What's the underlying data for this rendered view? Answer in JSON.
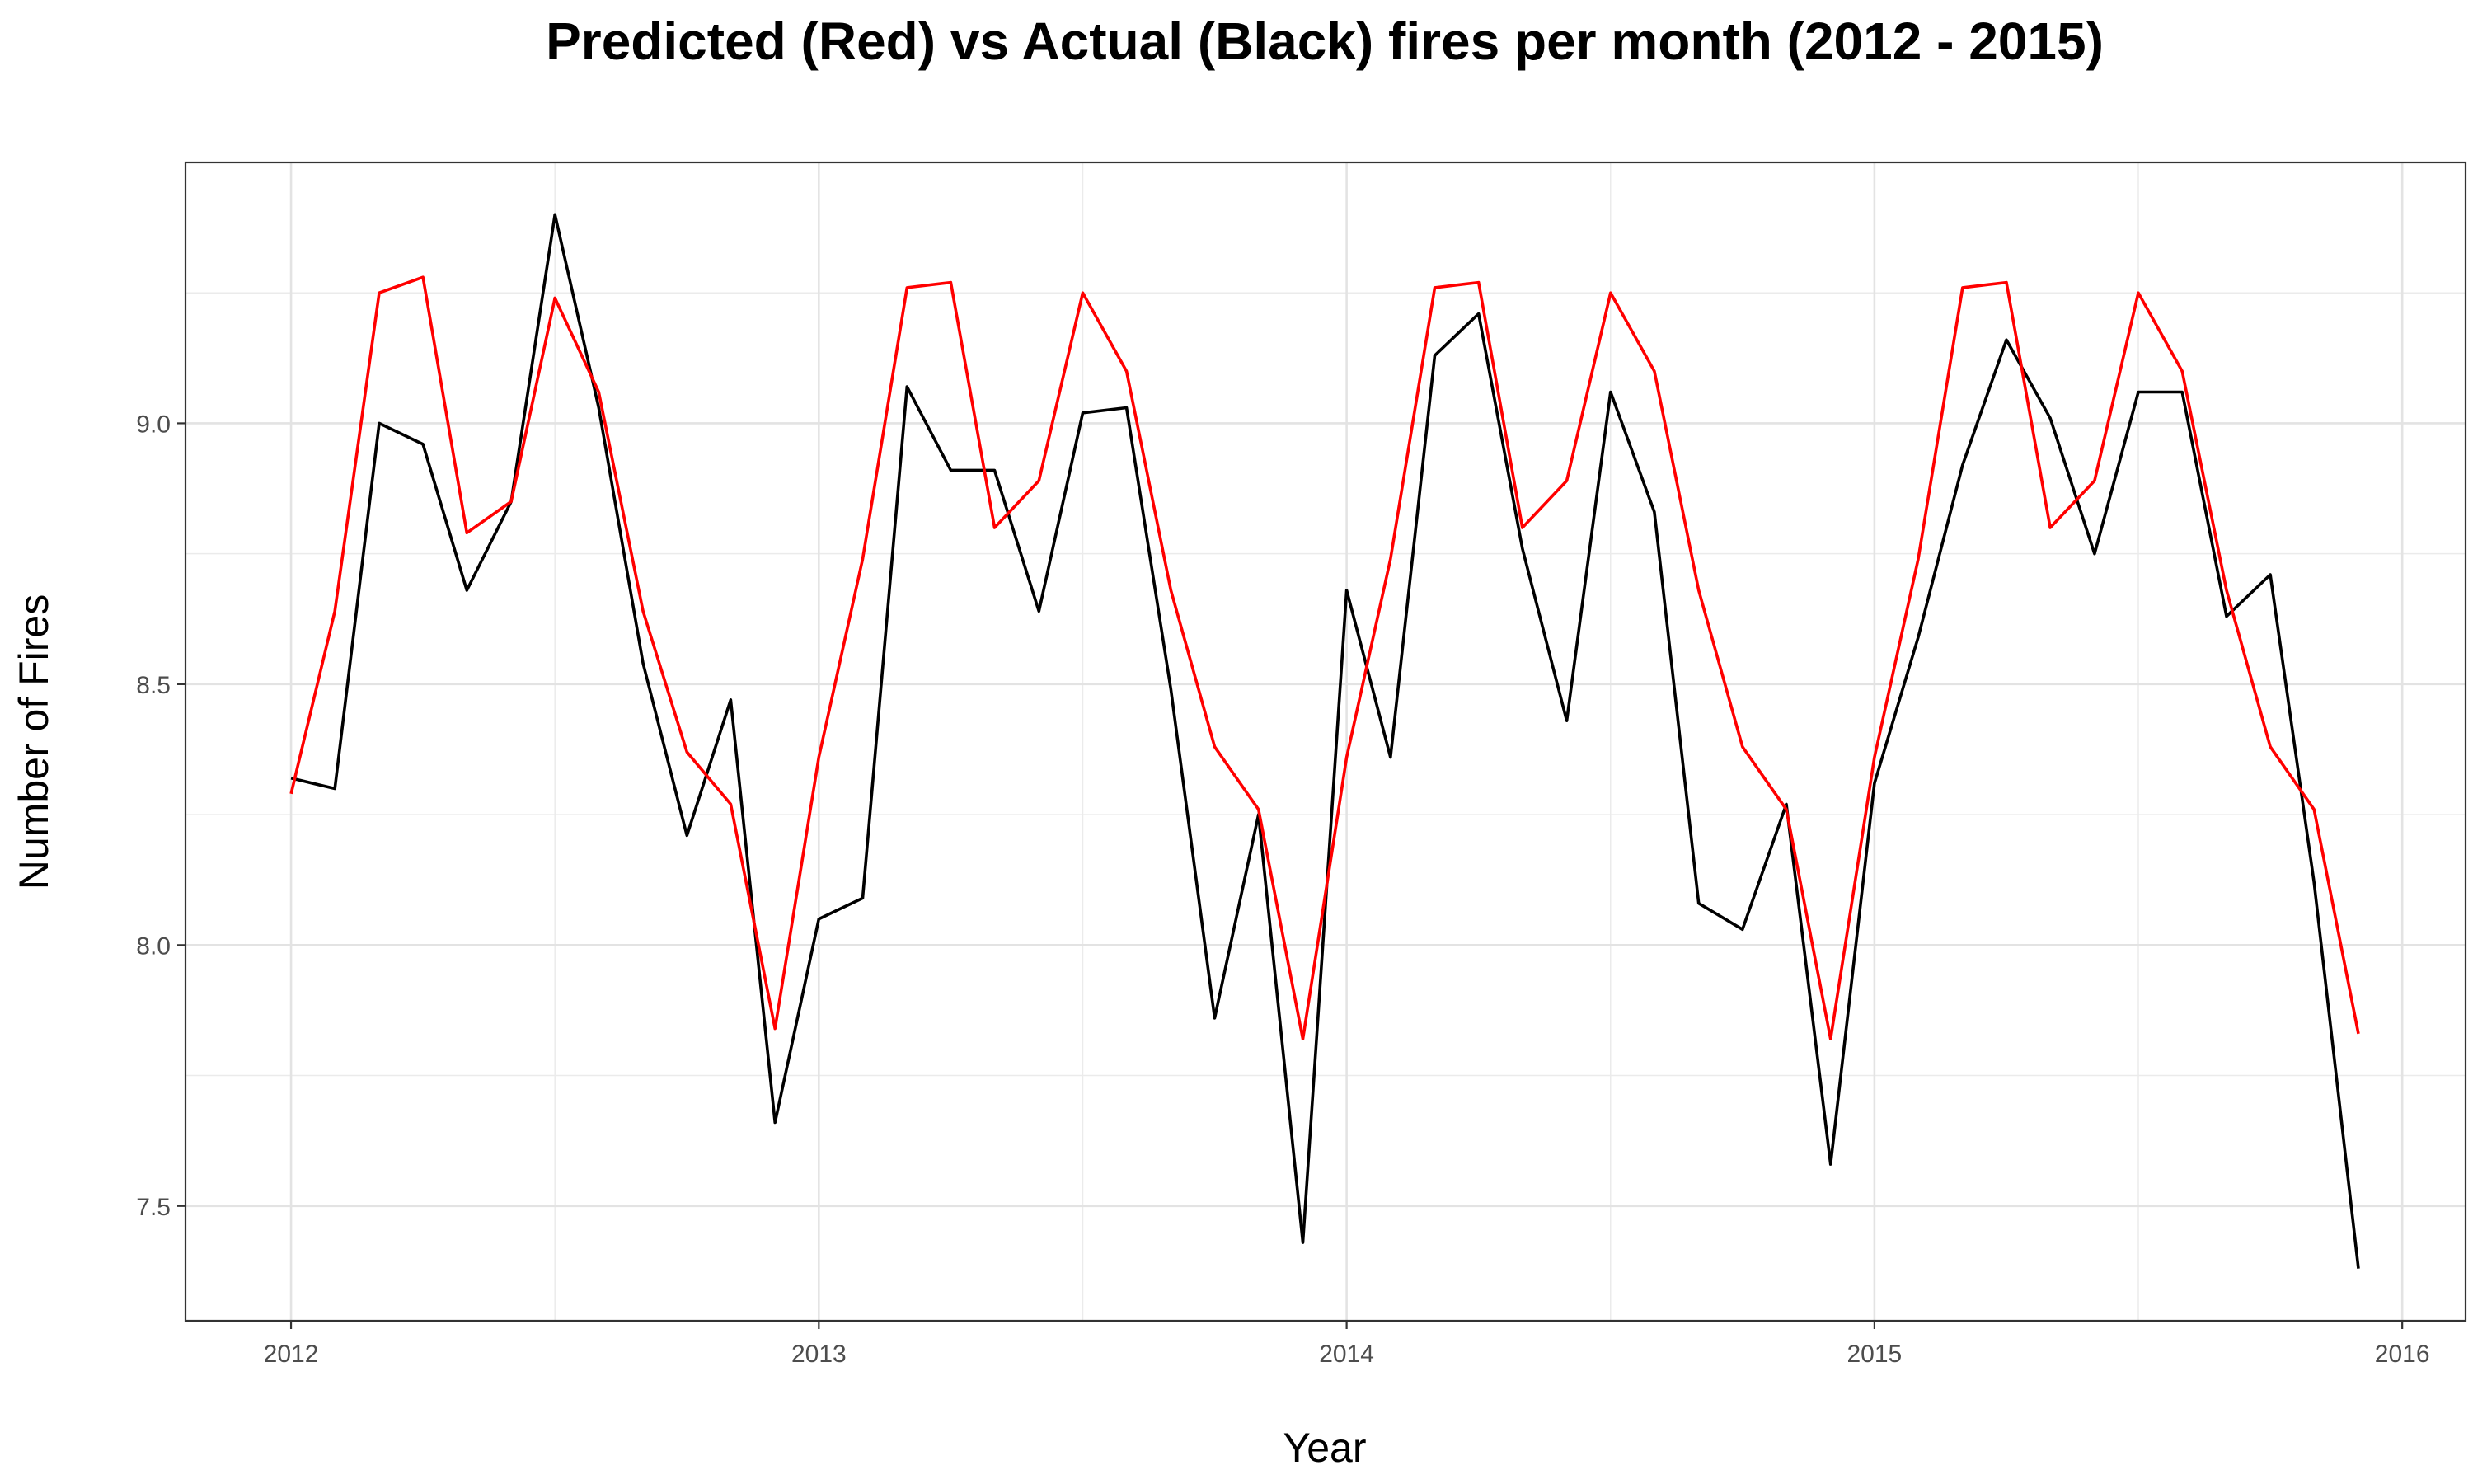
{
  "chart_data": {
    "type": "line",
    "title": "Predicted (Red) vs Actual (Black) fires per month (2012 - 2015)",
    "xlabel": "Year",
    "ylabel": "Number of Fires",
    "xlim": [
      2011.8,
      2016.12
    ],
    "ylim": [
      7.28,
      9.5
    ],
    "x_ticks": [
      2012,
      2013,
      2014,
      2015,
      2016
    ],
    "x_tick_labels": [
      "2012",
      "2013",
      "2014",
      "2015",
      "2016"
    ],
    "y_ticks": [
      7.5,
      8.0,
      8.5,
      9.0
    ],
    "y_tick_labels": [
      "7.5",
      "8.0",
      "8.5",
      "9.0"
    ],
    "grid": true,
    "x": [
      2012.0,
      2012.083,
      2012.167,
      2012.25,
      2012.333,
      2012.417,
      2012.5,
      2012.583,
      2012.667,
      2012.75,
      2012.833,
      2012.917,
      2013.0,
      2013.083,
      2013.167,
      2013.25,
      2013.333,
      2013.417,
      2013.5,
      2013.583,
      2013.667,
      2013.75,
      2013.833,
      2013.917,
      2014.0,
      2014.083,
      2014.167,
      2014.25,
      2014.333,
      2014.417,
      2014.5,
      2014.583,
      2014.667,
      2014.75,
      2014.833,
      2014.917,
      2015.0,
      2015.083,
      2015.167,
      2015.25,
      2015.333,
      2015.417,
      2015.5,
      2015.583,
      2015.667,
      2015.75,
      2015.833,
      2015.917
    ],
    "series": [
      {
        "name": "Actual",
        "color": "#000000",
        "values": [
          8.32,
          8.3,
          9.0,
          8.96,
          8.68,
          8.85,
          9.4,
          9.03,
          8.54,
          8.21,
          8.47,
          7.66,
          8.05,
          8.09,
          9.07,
          8.91,
          8.91,
          8.64,
          9.02,
          9.03,
          8.49,
          7.86,
          8.25,
          7.43,
          8.68,
          8.36,
          9.13,
          9.21,
          8.76,
          8.43,
          9.06,
          8.83,
          8.08,
          8.03,
          8.27,
          7.58,
          8.31,
          8.59,
          8.92,
          9.16,
          9.01,
          8.75,
          9.06,
          9.06,
          8.63,
          8.71,
          8.12,
          7.38
        ]
      },
      {
        "name": "Predicted",
        "color": "#ff0000",
        "values": [
          8.29,
          8.64,
          9.25,
          9.28,
          8.79,
          8.85,
          9.24,
          9.06,
          8.64,
          8.37,
          8.27,
          7.84,
          8.36,
          8.74,
          9.26,
          9.27,
          8.8,
          8.89,
          9.25,
          9.1,
          8.68,
          8.38,
          8.26,
          7.82,
          8.36,
          8.74,
          9.26,
          9.27,
          8.8,
          8.89,
          9.25,
          9.1,
          8.68,
          8.38,
          8.26,
          7.82,
          8.36,
          8.74,
          9.26,
          9.27,
          8.8,
          8.89,
          9.25,
          9.1,
          8.68,
          8.38,
          8.26,
          7.83
        ]
      }
    ]
  }
}
